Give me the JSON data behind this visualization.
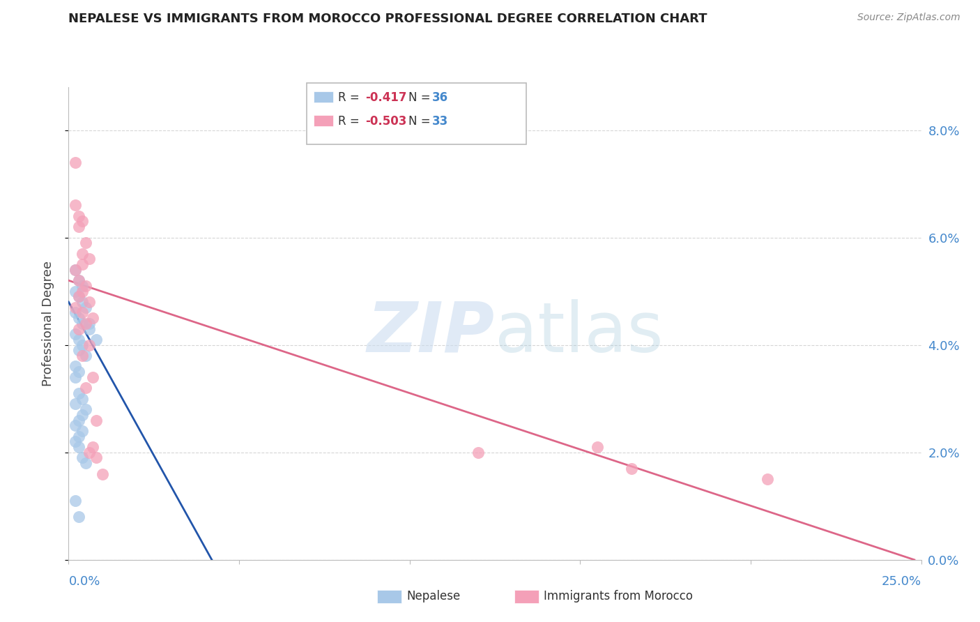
{
  "title": "NEPALESE VS IMMIGRANTS FROM MOROCCO PROFESSIONAL DEGREE CORRELATION CHART",
  "source": "Source: ZipAtlas.com",
  "ylabel": "Professional Degree",
  "right_ytick_labels": [
    "0.0%",
    "2.0%",
    "4.0%",
    "6.0%",
    "8.0%"
  ],
  "right_ytick_vals": [
    0.0,
    0.02,
    0.04,
    0.06,
    0.08
  ],
  "xlim": [
    0.0,
    0.25
  ],
  "ylim": [
    0.0,
    0.088
  ],
  "legend_r1": "R =  -0.417",
  "legend_n1": "N = 36",
  "legend_r2": "R =  -0.503",
  "legend_n2": "N = 33",
  "blue_color": "#a8c8e8",
  "pink_color": "#f4a0b8",
  "blue_line_color": "#2255aa",
  "pink_line_color": "#dd6688",
  "nepalese_points": [
    [
      0.002,
      0.054
    ],
    [
      0.003,
      0.052
    ],
    [
      0.004,
      0.051
    ],
    [
      0.002,
      0.05
    ],
    [
      0.003,
      0.049
    ],
    [
      0.004,
      0.048
    ],
    [
      0.005,
      0.047
    ],
    [
      0.002,
      0.046
    ],
    [
      0.003,
      0.045
    ],
    [
      0.004,
      0.044
    ],
    [
      0.006,
      0.043
    ],
    [
      0.002,
      0.042
    ],
    [
      0.003,
      0.041
    ],
    [
      0.004,
      0.04
    ],
    [
      0.003,
      0.039
    ],
    [
      0.005,
      0.038
    ],
    [
      0.002,
      0.036
    ],
    [
      0.003,
      0.035
    ],
    [
      0.002,
      0.034
    ],
    [
      0.006,
      0.044
    ],
    [
      0.008,
      0.041
    ],
    [
      0.003,
      0.031
    ],
    [
      0.004,
      0.03
    ],
    [
      0.002,
      0.029
    ],
    [
      0.005,
      0.028
    ],
    [
      0.004,
      0.027
    ],
    [
      0.003,
      0.026
    ],
    [
      0.002,
      0.025
    ],
    [
      0.004,
      0.024
    ],
    [
      0.003,
      0.023
    ],
    [
      0.002,
      0.022
    ],
    [
      0.003,
      0.021
    ],
    [
      0.004,
      0.019
    ],
    [
      0.005,
      0.018
    ],
    [
      0.002,
      0.011
    ],
    [
      0.003,
      0.008
    ]
  ],
  "morocco_points": [
    [
      0.002,
      0.074
    ],
    [
      0.002,
      0.066
    ],
    [
      0.003,
      0.064
    ],
    [
      0.004,
      0.063
    ],
    [
      0.003,
      0.062
    ],
    [
      0.005,
      0.059
    ],
    [
      0.004,
      0.057
    ],
    [
      0.006,
      0.056
    ],
    [
      0.004,
      0.055
    ],
    [
      0.002,
      0.054
    ],
    [
      0.003,
      0.052
    ],
    [
      0.005,
      0.051
    ],
    [
      0.004,
      0.05
    ],
    [
      0.003,
      0.049
    ],
    [
      0.006,
      0.048
    ],
    [
      0.002,
      0.047
    ],
    [
      0.004,
      0.046
    ],
    [
      0.007,
      0.045
    ],
    [
      0.005,
      0.044
    ],
    [
      0.003,
      0.043
    ],
    [
      0.006,
      0.04
    ],
    [
      0.004,
      0.038
    ],
    [
      0.007,
      0.034
    ],
    [
      0.005,
      0.032
    ],
    [
      0.008,
      0.026
    ],
    [
      0.007,
      0.021
    ],
    [
      0.006,
      0.02
    ],
    [
      0.008,
      0.019
    ],
    [
      0.01,
      0.016
    ],
    [
      0.12,
      0.02
    ],
    [
      0.155,
      0.021
    ],
    [
      0.165,
      0.017
    ],
    [
      0.205,
      0.015
    ]
  ],
  "nepalese_line_x": [
    0.0,
    0.042
  ],
  "nepalese_line_y": [
    0.048,
    0.0
  ],
  "morocco_line_x": [
    0.0,
    0.248
  ],
  "morocco_line_y": [
    0.052,
    0.0
  ],
  "grid_color": "#cccccc",
  "bg_color": "#ffffff"
}
